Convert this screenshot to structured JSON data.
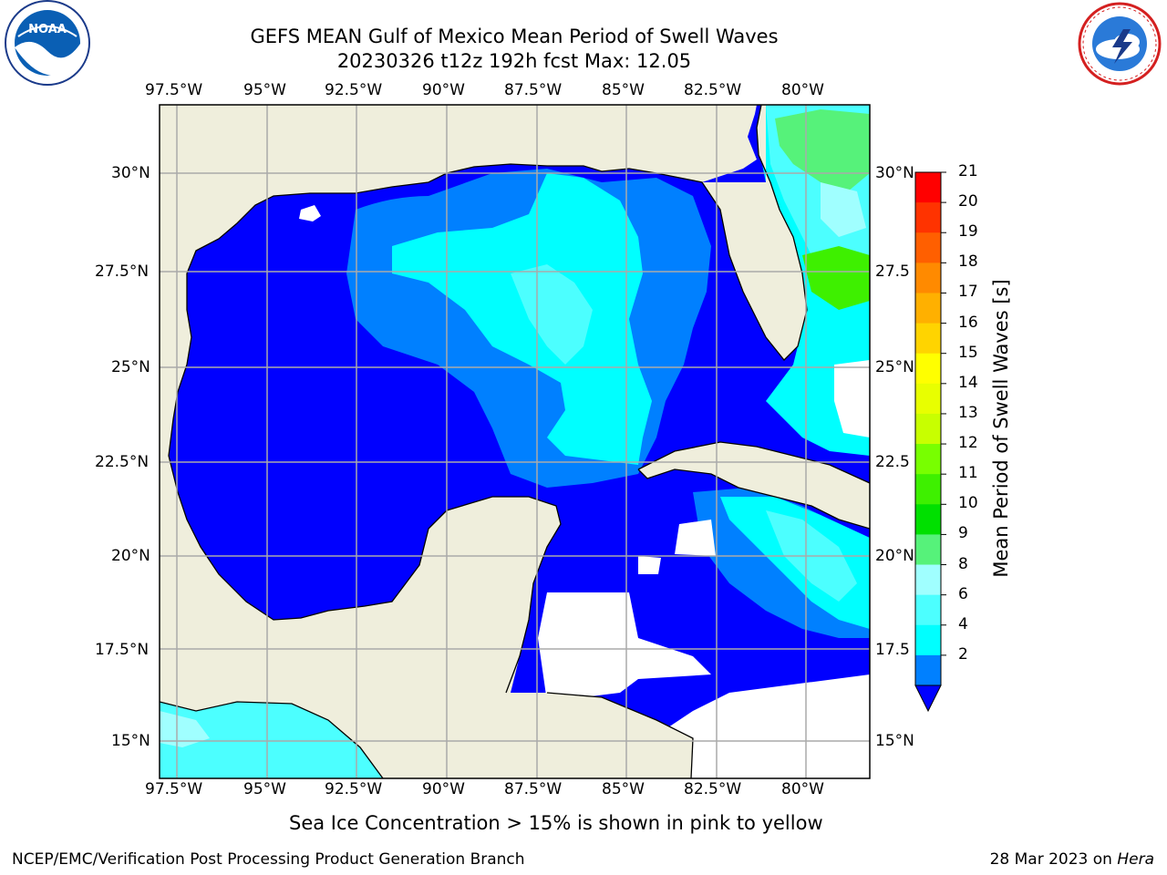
{
  "title": {
    "line1": "GEFS MEAN Gulf of Mexico Mean Period of Swell Waves",
    "line2": "20230326 t12z 192h fcst   Max: 12.05"
  },
  "logos": {
    "noaa": "NOAA",
    "noaa_ring": "NATIONAL OCEANIC AND ATMOSPHERIC ADMINISTRATION · U.S. DEPARTMENT OF COMMERCE",
    "nws_ring": "NATIONAL WEATHER SERVICE"
  },
  "axes": {
    "lon_labels": [
      "97.5°W",
      "95°W",
      "92.5°W",
      "90°W",
      "87.5°W",
      "85°W",
      "82.5°W",
      "80°W"
    ],
    "lat_labels": [
      "30°N",
      "27.5°N",
      "25°N",
      "22.5°N",
      "20°N",
      "17.5°N",
      "15°N"
    ],
    "lat_labels_right": [
      "30°N",
      "27.5",
      "25°N",
      "22.5",
      "20°N",
      "17.5",
      "15°N"
    ]
  },
  "colorbar": {
    "label": "Mean Period of Swell Waves [s]",
    "ticks": [
      "21",
      "20",
      "19",
      "18",
      "17",
      "16",
      "15",
      "14",
      "13",
      "12",
      "11",
      "10",
      "9",
      "8",
      "6",
      "4",
      "2"
    ],
    "colors": [
      "#ff0000",
      "#ff3300",
      "#ff5f00",
      "#ff8a00",
      "#ffb000",
      "#ffd400",
      "#ffff00",
      "#e8ff00",
      "#c8ff00",
      "#78ff00",
      "#3ef000",
      "#00e000",
      "#56f27a",
      "#a0ffff",
      "#4cffff",
      "#00ffff",
      "#0080ff"
    ],
    "extend_color": "#0000ff"
  },
  "colors": {
    "land": "#efeedc",
    "deep": "#0000ff",
    "mid": "#0080ff",
    "cyan": "#00ffff",
    "lightcyan": "#4cffff",
    "paleCyan": "#a0ffff",
    "green": "#56f27a",
    "brightGreen": "#3ef000"
  },
  "note": "Sea Ice Concentration > 15% is shown in pink to yellow",
  "footer": {
    "left": "NCEP/EMC/Verification Post Processing Product Generation Branch",
    "right_date": "28 Mar 2023 on",
    "right_host": "Hera"
  }
}
